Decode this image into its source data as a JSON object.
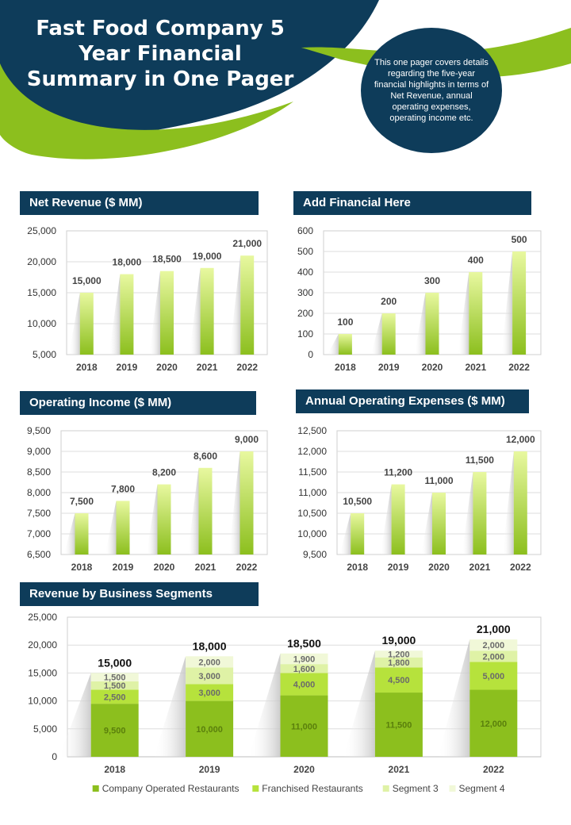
{
  "hero": {
    "title_lines": [
      "Fast Food Company 5",
      "Year Financial",
      "Summary in One Pager"
    ],
    "description": "This one pager covers details regarding the five-year financial highlights in terms of Net Revenue, annual operating expenses, operating income etc.",
    "colors": {
      "navy": "#0e3c5a",
      "green": "#8cbf1e"
    }
  },
  "sections": {
    "net_revenue": "Net Revenue ($ MM)",
    "add_financial": "Add Financial Here",
    "operating_income": "Operating Income ($ MM)",
    "annual_expenses": "Annual Operating Expenses ($ MM)",
    "segments": "Revenue by Business Segments"
  },
  "chart_data": [
    {
      "id": "net_revenue",
      "type": "bar",
      "title": "Net Revenue ($ MM)",
      "categories": [
        "2018",
        "2019",
        "2020",
        "2021",
        "2022"
      ],
      "values": [
        15000,
        18000,
        18500,
        19000,
        21000
      ],
      "value_labels": [
        "15,000",
        "18,000",
        "18,500",
        "19,000",
        "21,000"
      ],
      "yticks": [
        "5,000",
        "10,000",
        "15,000",
        "20,000",
        "25,000"
      ],
      "ylim": [
        5000,
        25000
      ],
      "ystep": 5000,
      "grid": true
    },
    {
      "id": "add_financial",
      "type": "bar",
      "title": "Add Financial Here",
      "categories": [
        "2018",
        "2019",
        "2020",
        "2021",
        "2022"
      ],
      "values": [
        100,
        200,
        300,
        400,
        500
      ],
      "value_labels": [
        "100",
        "200",
        "300",
        "400",
        "500"
      ],
      "yticks": [
        "0",
        "100",
        "200",
        "300",
        "400",
        "500",
        "600"
      ],
      "ylim": [
        0,
        600
      ],
      "ystep": 100,
      "grid": true
    },
    {
      "id": "operating_income",
      "type": "bar",
      "title": "Operating Income ($ MM)",
      "categories": [
        "2018",
        "2019",
        "2020",
        "2021",
        "2022"
      ],
      "values": [
        7500,
        7800,
        8200,
        8600,
        9000
      ],
      "value_labels": [
        "7,500",
        "7,800",
        "8,200",
        "8,600",
        "9,000"
      ],
      "yticks": [
        "6,500",
        "7,000",
        "7,500",
        "8,000",
        "8,500",
        "9,000",
        "9,500"
      ],
      "ylim": [
        6500,
        9500
      ],
      "ystep": 500,
      "grid": true
    },
    {
      "id": "annual_expenses",
      "type": "bar",
      "title": "Annual Operating Expenses ($ MM)",
      "categories": [
        "2018",
        "2019",
        "2020",
        "2021",
        "2022"
      ],
      "values": [
        10500,
        11200,
        11000,
        11500,
        12000
      ],
      "value_labels": [
        "10,500",
        "11,200",
        "11,000",
        "11,500",
        "12,000"
      ],
      "yticks": [
        "9,500",
        "10,000",
        "10,500",
        "11,000",
        "11,500",
        "12,000",
        "12,500"
      ],
      "ylim": [
        9500,
        12500
      ],
      "ystep": 500,
      "grid": true
    },
    {
      "id": "segments",
      "type": "bar",
      "stacked": true,
      "title": "Revenue by Business Segments",
      "categories": [
        "2018",
        "2019",
        "2020",
        "2021",
        "2022"
      ],
      "series": [
        {
          "name": "Company Operated Restaurants",
          "values": [
            9500,
            10000,
            11000,
            11500,
            12000
          ],
          "labels": [
            "9,500",
            "10,000",
            "11,000",
            "11,500",
            "12,000"
          ],
          "color": "#8cbf1e"
        },
        {
          "name": "Franchised Restaurants",
          "values": [
            2500,
            3000,
            4000,
            4500,
            5000
          ],
          "labels": [
            "2,500",
            "3,000",
            "4,000",
            "4,500",
            "5,000"
          ],
          "color": "#b6e23c"
        },
        {
          "name": "Segment 3",
          "values": [
            1500,
            3000,
            1600,
            1800,
            2000
          ],
          "labels": [
            "1,500",
            "3,000",
            "1,600",
            "1,800",
            "2,000"
          ],
          "color": "#dff2a6"
        },
        {
          "name": "Segment 4",
          "values": [
            1500,
            2000,
            1900,
            1200,
            2000
          ],
          "labels": [
            "1,500",
            "2,000",
            "1,900",
            "1,200",
            "2,000"
          ],
          "color": "#f1f8d8"
        }
      ],
      "totals": [
        "15,000",
        "18,000",
        "18,500",
        "19,000",
        "21,000"
      ],
      "yticks": [
        "0",
        "5,000",
        "10,000",
        "15,000",
        "20,000",
        "25,000"
      ],
      "ylim": [
        0,
        25000
      ],
      "ystep": 5000,
      "grid": true,
      "legend": "bottom"
    }
  ]
}
